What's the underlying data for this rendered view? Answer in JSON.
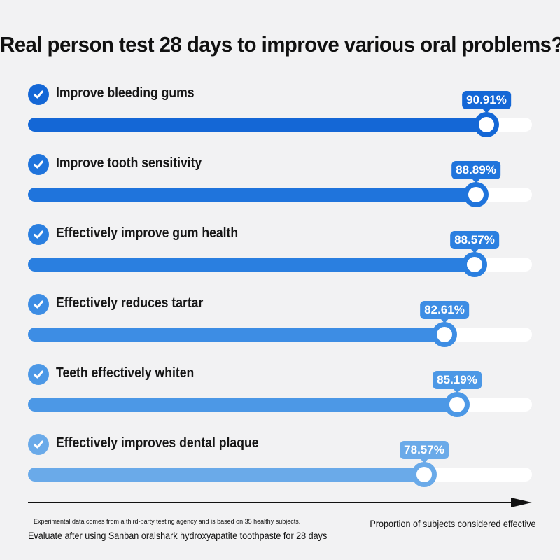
{
  "chart_data": {
    "type": "bar",
    "orientation": "horizontal",
    "title": "Real person test 28 days to improve various oral problems?",
    "categories": [
      "Improve bleeding gums",
      "Improve tooth sensitivity",
      "Effectively improve gum health",
      "Effectively reduces tartar",
      "Teeth effectively whiten",
      "Effectively improves dental plaque"
    ],
    "values": [
      90.91,
      88.89,
      88.57,
      82.61,
      85.19,
      78.57
    ],
    "value_labels": [
      "90.91%",
      "88.89%",
      "88.57%",
      "82.61%",
      "85.19%",
      "78.57%"
    ],
    "colors": [
      "#1467d6",
      "#1f74dc",
      "#2a7fe0",
      "#3d8de4",
      "#4c98e6",
      "#6aaae9"
    ],
    "xlabel": "Proportion of subjects considered effective",
    "xlim": [
      0,
      100
    ],
    "grid": false,
    "legend": "none"
  },
  "footnotes": {
    "source": "Experimental data comes from a third-party testing agency and is based on 35 healthy subjects.",
    "method": "Evaluate after using Sanban oralshark hydroxyapatite toothpaste for 28 days"
  },
  "icons": {
    "check": "check-circle-icon"
  }
}
